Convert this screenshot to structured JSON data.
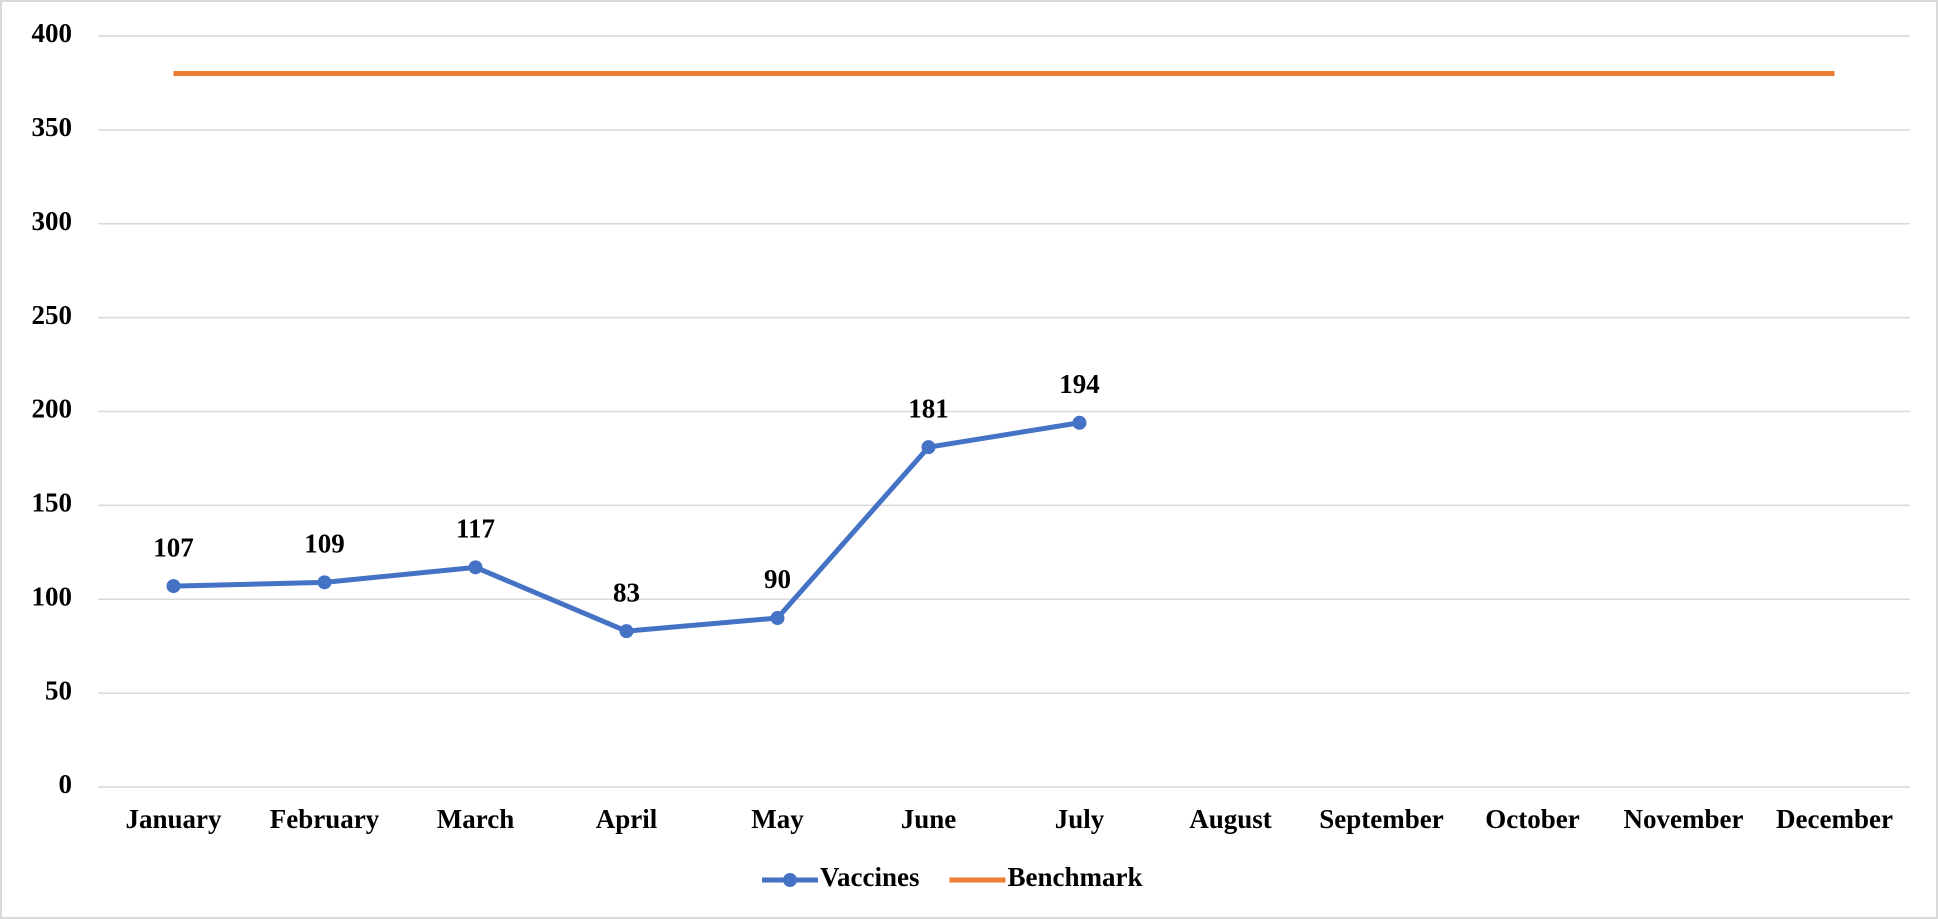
{
  "chart_data": {
    "type": "line",
    "categories": [
      "January",
      "February",
      "March",
      "April",
      "May",
      "June",
      "July",
      "August",
      "September",
      "October",
      "November",
      "December"
    ],
    "series": [
      {
        "name": "Vaccines",
        "color": "#4472c4",
        "values": [
          107,
          109,
          117,
          83,
          90,
          181,
          194,
          null,
          null,
          null,
          null,
          null
        ],
        "markers": true,
        "data_labels": true
      },
      {
        "name": "Benchmark",
        "color": "#ed7d31",
        "values": [
          380,
          380,
          380,
          380,
          380,
          380,
          380,
          380,
          380,
          380,
          380,
          380
        ],
        "markers": false,
        "data_labels": false
      }
    ],
    "ylim": [
      0,
      400
    ],
    "yticks": [
      0,
      50,
      100,
      150,
      200,
      250,
      300,
      350,
      400
    ],
    "grid": true,
    "legend": "bottom"
  }
}
